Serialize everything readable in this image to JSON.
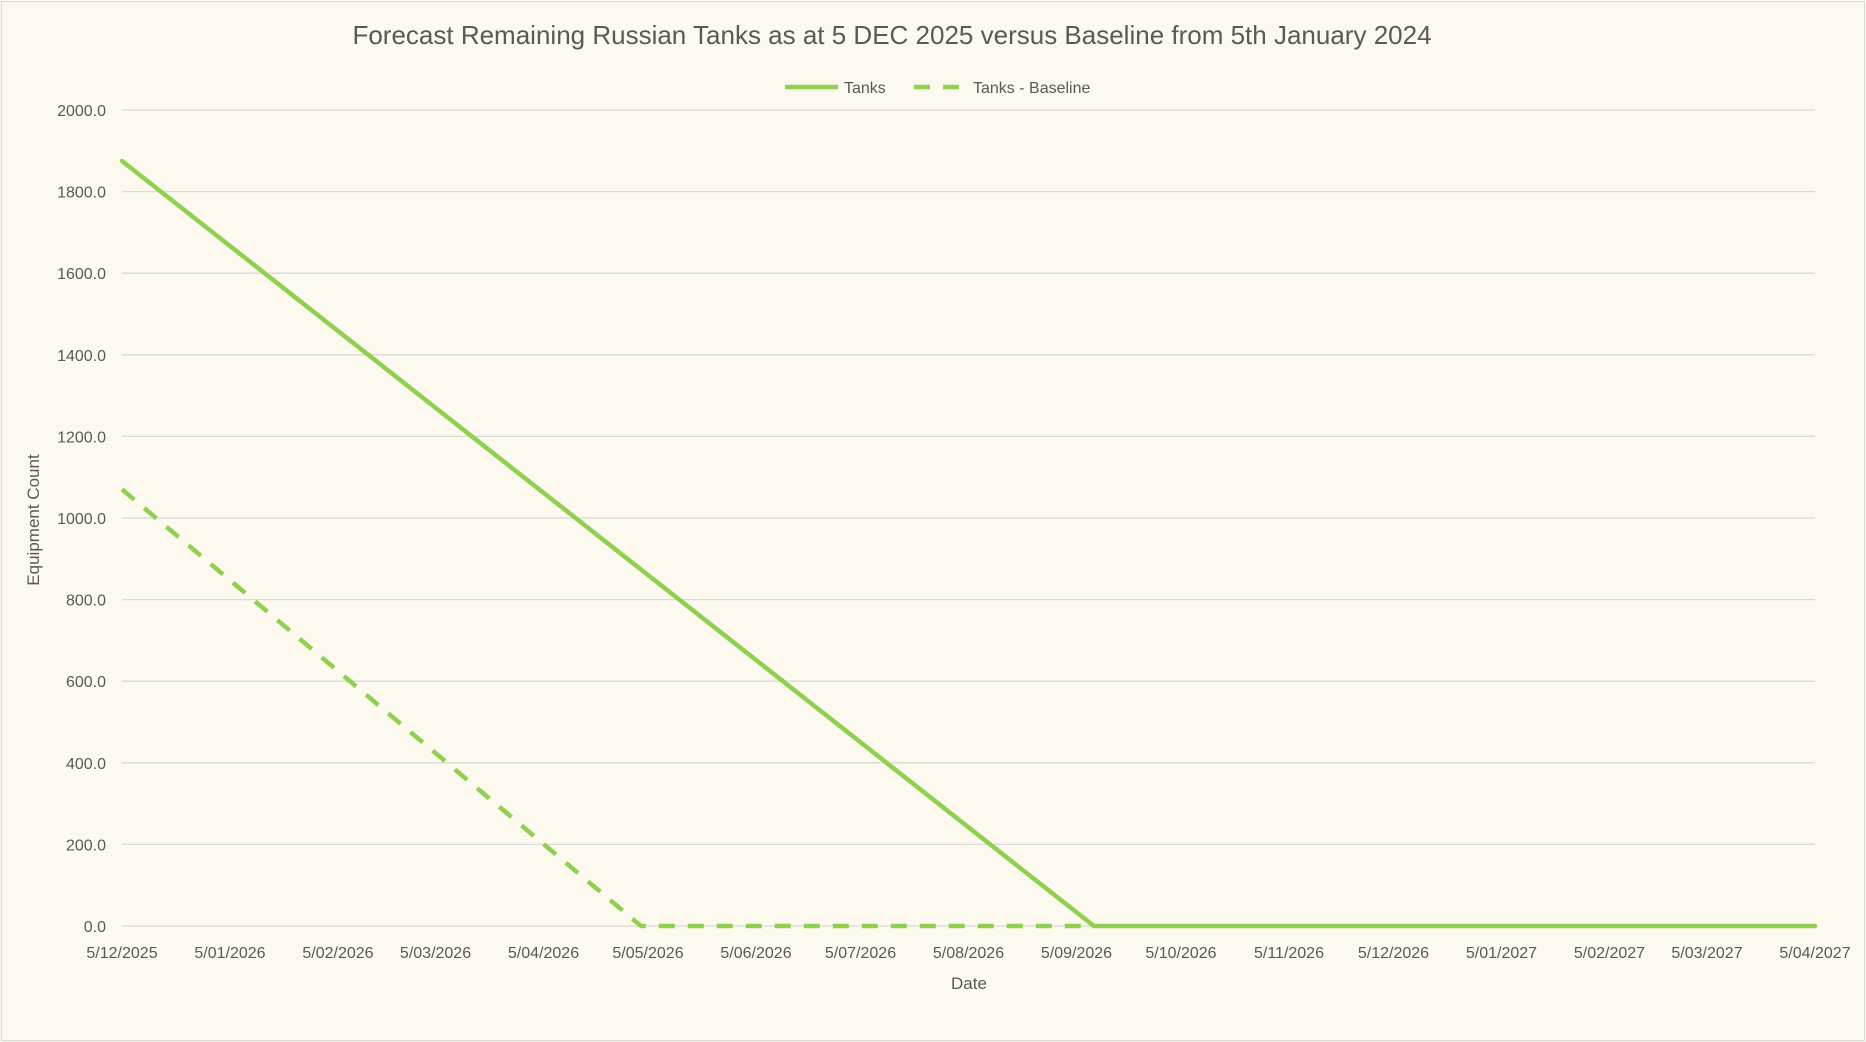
{
  "colors": {
    "series": "#8fd14f",
    "grid": "#d9d9d9",
    "text": "#595959",
    "background": "#fdf9ee"
  },
  "chart_data": {
    "type": "line",
    "title": "Forecast Remaining Russian Tanks as at 5 DEC 2025 versus Baseline from 5th January 2024",
    "xlabel": "Date",
    "ylabel": "Equipment Count",
    "x_type": "date",
    "xlim": [
      "2025-12-05",
      "2027-04-05"
    ],
    "ylim": [
      0,
      2000
    ],
    "grid": true,
    "legend_position": "top",
    "x_tick_labels": [
      "5/12/2025",
      "5/01/2026",
      "5/02/2026",
      "5/03/2026",
      "5/04/2026",
      "5/05/2026",
      "5/06/2026",
      "5/07/2026",
      "5/08/2026",
      "5/09/2026",
      "5/10/2026",
      "5/11/2026",
      "5/12/2026",
      "5/01/2027",
      "5/02/2027",
      "5/03/2027",
      "5/04/2027"
    ],
    "x_ticks": [
      "2025-12-05",
      "2026-01-05",
      "2026-02-05",
      "2026-03-05",
      "2026-04-05",
      "2026-05-05",
      "2026-06-05",
      "2026-07-05",
      "2026-08-05",
      "2026-09-05",
      "2026-10-05",
      "2026-11-05",
      "2026-12-05",
      "2027-01-05",
      "2027-02-05",
      "2027-03-05",
      "2027-04-05"
    ],
    "y_ticks": [
      0,
      200,
      400,
      600,
      800,
      1000,
      1200,
      1400,
      1600,
      1800,
      2000
    ],
    "y_tick_labels": [
      "0.0",
      "200.0",
      "400.0",
      "600.0",
      "800.0",
      "1000.0",
      "1200.0",
      "1400.0",
      "1600.0",
      "1800.0",
      "2000.0"
    ],
    "series": [
      {
        "name": "Tanks",
        "style": "solid",
        "points": [
          {
            "x": "2025-12-05",
            "y": 1875
          },
          {
            "x": "2026-09-10",
            "y": 0
          },
          {
            "x": "2027-04-05",
            "y": 0
          }
        ]
      },
      {
        "name": "Tanks - Baseline",
        "style": "dashed",
        "points": [
          {
            "x": "2025-12-05",
            "y": 1070
          },
          {
            "x": "2026-05-03",
            "y": 0
          },
          {
            "x": "2026-09-10",
            "y": 0
          }
        ]
      }
    ]
  }
}
